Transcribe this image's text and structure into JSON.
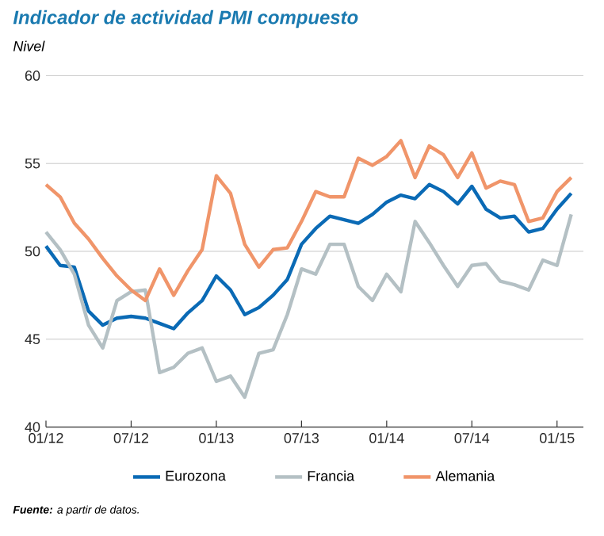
{
  "chart_data": {
    "type": "line",
    "title": "Indicador de actividad PMI compuesto",
    "ylabel": "Nivel",
    "x": [
      "2012-01",
      "2012-02",
      "2012-03",
      "2012-04",
      "2012-05",
      "2012-06",
      "2012-07",
      "2012-08",
      "2012-09",
      "2012-10",
      "2012-11",
      "2012-12",
      "2013-01",
      "2013-02",
      "2013-03",
      "2013-04",
      "2013-05",
      "2013-06",
      "2013-07",
      "2013-08",
      "2013-09",
      "2013-10",
      "2013-11",
      "2013-12",
      "2014-01",
      "2014-02",
      "2014-03",
      "2014-04",
      "2014-05",
      "2014-06",
      "2014-07",
      "2014-08",
      "2014-09",
      "2014-10",
      "2014-11",
      "2014-12",
      "2015-01",
      "2015-02"
    ],
    "series": [
      {
        "name": "Eurozona",
        "color": "#0a6ab5",
        "values": [
          50.3,
          49.2,
          49.1,
          46.6,
          45.8,
          46.2,
          46.3,
          46.2,
          45.9,
          45.6,
          46.5,
          47.2,
          48.6,
          47.8,
          46.4,
          46.8,
          47.5,
          48.4,
          50.4,
          51.3,
          52.0,
          51.8,
          51.6,
          52.1,
          52.8,
          53.2,
          53.0,
          53.8,
          53.4,
          52.7,
          53.7,
          52.4,
          51.9,
          52.0,
          51.1,
          51.3,
          52.4,
          53.3
        ]
      },
      {
        "name": "Francia",
        "color": "#b4c0c4",
        "values": [
          51.1,
          50.1,
          48.7,
          45.8,
          44.5,
          47.2,
          47.7,
          47.8,
          43.1,
          43.4,
          44.2,
          44.5,
          42.6,
          42.9,
          41.7,
          44.2,
          44.4,
          46.4,
          49.0,
          48.7,
          50.4,
          50.4,
          48.0,
          47.2,
          48.7,
          47.7,
          51.7,
          50.5,
          49.2,
          48.0,
          49.2,
          49.3,
          48.3,
          48.1,
          47.8,
          49.5,
          49.2,
          52.1
        ]
      },
      {
        "name": "Alemania",
        "color": "#f0956a",
        "values": [
          53.8,
          53.1,
          51.6,
          50.7,
          49.6,
          48.6,
          47.8,
          47.2,
          49.0,
          47.5,
          48.9,
          50.1,
          54.3,
          53.3,
          50.4,
          49.1,
          50.1,
          50.2,
          51.7,
          53.4,
          53.1,
          53.1,
          55.3,
          54.9,
          55.4,
          56.3,
          54.2,
          56.0,
          55.5,
          54.2,
          55.6,
          53.6,
          54.0,
          53.8,
          51.7,
          51.9,
          53.4,
          54.2
        ]
      }
    ],
    "xlim": [
      "2012-01",
      "2015-02-25"
    ],
    "xticks": [
      {
        "value": "2012-01",
        "label": "01/12"
      },
      {
        "value": "2012-07",
        "label": "07/12"
      },
      {
        "value": "2013-01",
        "label": "01/13"
      },
      {
        "value": "2013-07",
        "label": "07/13"
      },
      {
        "value": "2014-01",
        "label": "01/14"
      },
      {
        "value": "2014-07",
        "label": "07/14"
      },
      {
        "value": "2015-01",
        "label": "01/15"
      }
    ],
    "ylim": [
      40,
      60
    ],
    "yticks": [
      40,
      45,
      50,
      55,
      60
    ],
    "grid": "y",
    "legend": "bottom",
    "line_style": "solid",
    "annotations": [
      "**Fuente:** a partir de datos."
    ]
  }
}
